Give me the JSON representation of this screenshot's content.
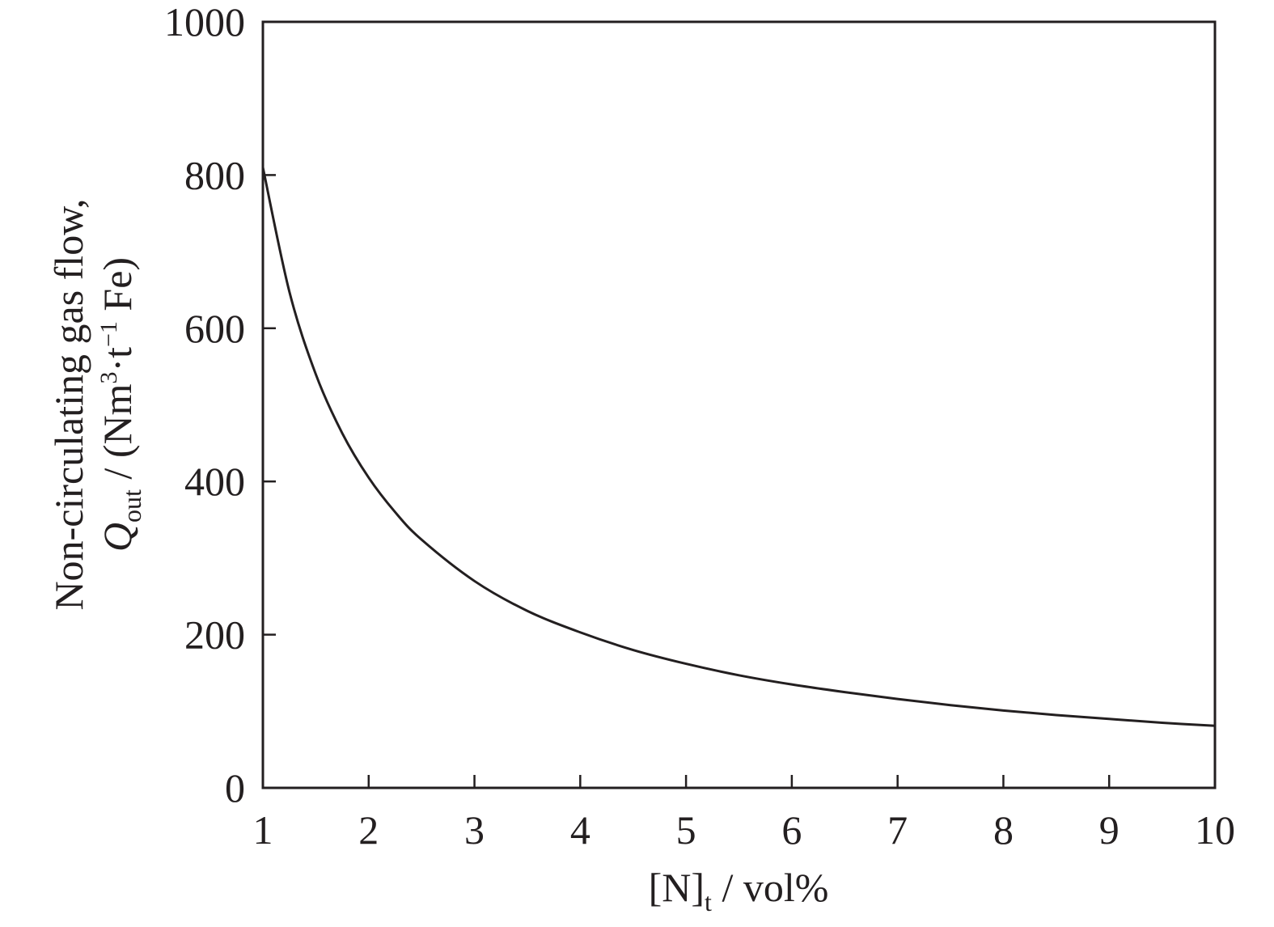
{
  "chart_data": {
    "type": "line",
    "title": "",
    "xlabel": {
      "main": "[N]",
      "sub": "t",
      "rest": " / vol%"
    },
    "ylabel": {
      "line1": "Non-circulating gas flow,",
      "q": "Q",
      "q_sub": "out",
      "mid": " / (Nm",
      "sup1": "3",
      "dot": "·t",
      "sup2": "−1",
      "tail": " Fe)"
    },
    "xlim": [
      1,
      10
    ],
    "ylim": [
      0,
      1000
    ],
    "x_ticks": [
      1,
      2,
      3,
      4,
      5,
      6,
      7,
      8,
      9,
      10
    ],
    "y_ticks": [
      0,
      200,
      400,
      600,
      800,
      1000
    ],
    "grid": false,
    "legend": "none",
    "line_color": "#231f20",
    "series": [
      {
        "x": [
          1,
          1.25,
          1.5,
          1.75,
          2,
          2.25,
          2.5,
          3,
          3.5,
          4,
          4.5,
          5,
          5.5,
          6,
          6.5,
          7,
          7.5,
          8,
          8.5,
          9,
          9.5,
          10
        ],
        "values": [
          810,
          648,
          540,
          463,
          405,
          360,
          324,
          270,
          231,
          203,
          180,
          162,
          147,
          135,
          125,
          116,
          108,
          101,
          95,
          90,
          85,
          81
        ]
      }
    ]
  }
}
